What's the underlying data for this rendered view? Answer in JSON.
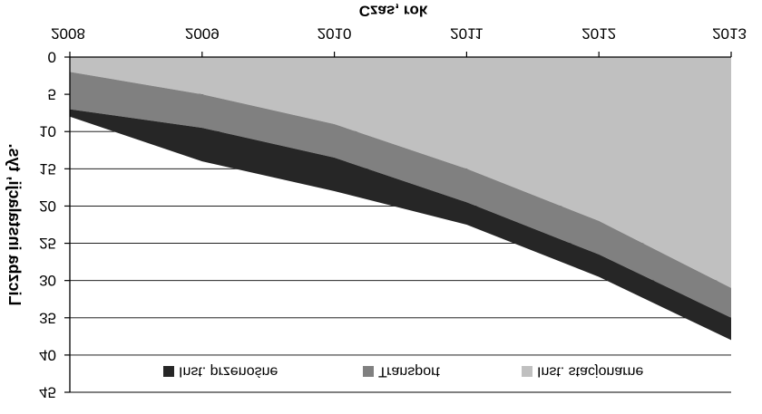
{
  "chart_data": {
    "type": "area",
    "stacked": true,
    "orientation": "upside-down (mirrored vertically)",
    "xlabel": "Czas, rok",
    "ylabel": "Liczba instalacji, tys.",
    "x": [
      "2008",
      "2009",
      "2010",
      "2011",
      "2012",
      "2013"
    ],
    "y_ticks": [
      "0",
      "5",
      "10",
      "15",
      "20",
      "25",
      "30",
      "35",
      "40",
      "45"
    ],
    "ylim": [
      0,
      45
    ],
    "grid": true,
    "legend_position": "bottom",
    "series": [
      {
        "name": "Inst. stacjonarne",
        "color": "#c0c0c0",
        "values": [
          2,
          5,
          9,
          15,
          22,
          31
        ]
      },
      {
        "name": "Transport",
        "color": "#808080",
        "values": [
          5,
          4.5,
          4.5,
          4.5,
          4.5,
          4
        ]
      },
      {
        "name": "Inst. przenośne",
        "color": "#262626",
        "values": [
          1,
          4.5,
          4.5,
          3,
          3,
          3
        ]
      }
    ]
  }
}
